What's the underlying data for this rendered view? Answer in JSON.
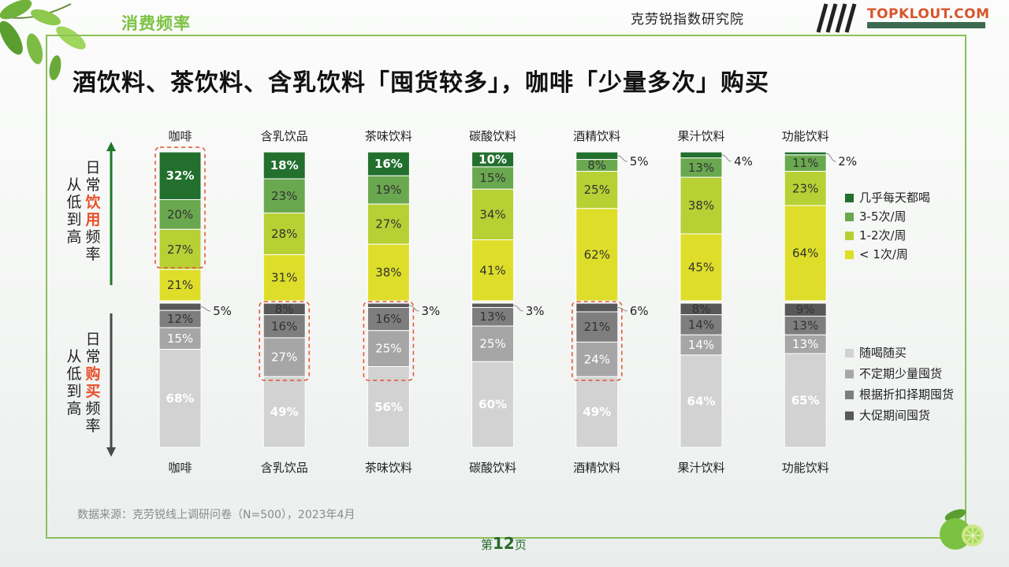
{
  "header": {
    "section_tab": "消费频率",
    "institute": "克劳锐指数研究院",
    "logo": "TOPKLOUT.COM"
  },
  "headline": "酒饮料、茶饮料、含乳饮料「囤货较多」，咖啡「少量多次」购买",
  "axis_labels": {
    "top_group": {
      "col1": [
        "日",
        "常",
        "饮",
        "用",
        "频",
        "率"
      ],
      "col2": [
        "从",
        "低",
        "到",
        "高"
      ]
    },
    "bottom_group": {
      "col1": [
        "日",
        "常",
        "购",
        "买",
        "频",
        "率"
      ],
      "col2": [
        "从",
        "低",
        "到",
        "高"
      ]
    }
  },
  "footer": {
    "source": "数据来源：克劳锐线上调研问卷（N=500），2023年4月",
    "page_prefix": "第",
    "page_number": "12",
    "page_suffix": "页"
  },
  "colors": {
    "drink": [
      "#226f2e",
      "#6aa84f",
      "#b7d034",
      "#dede2a"
    ],
    "buy": [
      "#585858",
      "#7e7e7e",
      "#a6a6a6",
      "#d2d2d2"
    ],
    "highlight_box": "#e8502a",
    "up_arrow": "#1f7a2a",
    "down_arrow": "#4a4a4a"
  },
  "chart_data": [
    {
      "type": "bar",
      "stacked": true,
      "part": "drinking_frequency",
      "categories": [
        "咖啡",
        "含乳饮品",
        "茶味饮料",
        "碳酸饮料",
        "酒精饮料",
        "果汁饮料",
        "功能饮料"
      ],
      "series": [
        {
          "name": "几乎每天都喝",
          "values": [
            32,
            18,
            16,
            10,
            5,
            4,
            2
          ]
        },
        {
          "name": "3-5次/周",
          "values": [
            20,
            23,
            19,
            15,
            8,
            13,
            11
          ]
        },
        {
          "name": "1-2次/周",
          "values": [
            27,
            28,
            27,
            34,
            25,
            38,
            23
          ]
        },
        {
          "name": "< 1次/周",
          "values": [
            21,
            31,
            38,
            41,
            62,
            45,
            64
          ]
        }
      ],
      "labels": [
        [
          "32%",
          "18%",
          "16%",
          "10%",
          "5%",
          "4%",
          "2%"
        ],
        [
          "20%",
          "23%",
          "19%",
          "15%",
          "8%",
          "13%",
          "11%"
        ],
        [
          "27%",
          "28%",
          "27%",
          "34%",
          "25%",
          "38%",
          "23%"
        ],
        [
          "21%",
          "31%",
          "38%",
          "41%",
          "62%",
          "45%",
          "64%"
        ]
      ],
      "highlighted_categories": [
        "咖啡"
      ],
      "legend_position": "right-top",
      "ylim": [
        0,
        100
      ]
    },
    {
      "type": "bar",
      "stacked": true,
      "part": "purchase_frequency",
      "categories": [
        "咖啡",
        "含乳饮品",
        "茶味饮料",
        "碳酸饮料",
        "酒精饮料",
        "果汁饮料",
        "功能饮料"
      ],
      "series": [
        {
          "name": "大促期间囤货",
          "values": [
            5,
            8,
            3,
            3,
            6,
            8,
            9
          ]
        },
        {
          "name": "根据折扣择期囤货",
          "values": [
            12,
            16,
            16,
            13,
            21,
            14,
            13
          ]
        },
        {
          "name": "不定期少量囤货",
          "values": [
            15,
            27,
            25,
            25,
            24,
            14,
            13
          ]
        },
        {
          "name": "随喝随买",
          "values": [
            68,
            49,
            56,
            60,
            49,
            64,
            65
          ]
        }
      ],
      "labels": [
        [
          "5%",
          "8%",
          "3%",
          "3%",
          "6%",
          "8%",
          "9%"
        ],
        [
          "12%",
          "16%",
          "16%",
          "13%",
          "21%",
          "14%",
          "13%"
        ],
        [
          "15%",
          "27%",
          "25%",
          "25%",
          "24%",
          "14%",
          "13%"
        ],
        [
          "68%",
          "49%",
          "56%",
          "60%",
          "49%",
          "64%",
          "65%"
        ]
      ],
      "highlighted_categories": [
        "含乳饮品",
        "茶味饮料",
        "酒精饮料"
      ],
      "legend_position": "right-bottom",
      "ylim": [
        0,
        100
      ]
    }
  ]
}
